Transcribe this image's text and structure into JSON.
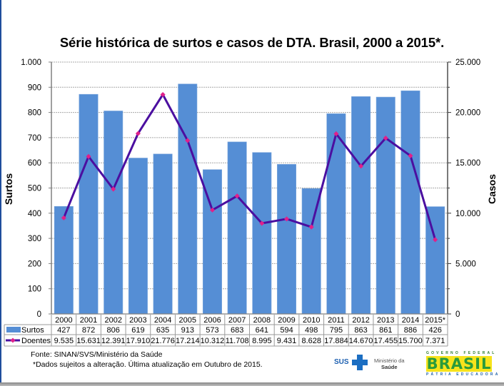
{
  "chart_data": {
    "type": "bar",
    "title": "Série histórica de surtos e casos de DTA. Brasil, 2000 a 2015*.",
    "categories": [
      "2000",
      "2001",
      "2002",
      "2003",
      "2004",
      "2005",
      "2006",
      "2007",
      "2008",
      "2009",
      "2010",
      "2011",
      "2012",
      "2013",
      "2014",
      "2015*"
    ],
    "series": [
      {
        "name": "Surtos",
        "type": "bar",
        "axis": "left",
        "color": "#558ed5",
        "values": [
          427,
          872,
          806,
          619,
          635,
          913,
          573,
          683,
          641,
          594,
          498,
          795,
          863,
          861,
          886,
          426
        ],
        "labels": [
          "427",
          "872",
          "806",
          "619",
          "635",
          "913",
          "573",
          "683",
          "641",
          "594",
          "498",
          "795",
          "863",
          "861",
          "886",
          "426"
        ]
      },
      {
        "name": "Doentes",
        "type": "line",
        "axis": "right",
        "color": "#4b0fa0",
        "marker_color": "#e0208a",
        "values": [
          9535,
          15631,
          12391,
          17910,
          21776,
          17214,
          10312,
          11708,
          8995,
          9431,
          8628,
          17884,
          14670,
          17455,
          15700,
          7371
        ],
        "labels": [
          "9.535",
          "15.631",
          "12.391",
          "17.910",
          "21.776",
          "17.214",
          "10.312",
          "11.708",
          "8.995",
          "9.431",
          "8.628",
          "17.884",
          "14.670",
          "17.455",
          "15.700",
          "7.371"
        ]
      }
    ],
    "ylabel": "Surtos",
    "ylim": [
      0,
      1000
    ],
    "yticks": [
      "0",
      "100",
      "200",
      "300",
      "400",
      "500",
      "600",
      "700",
      "800",
      "900",
      "1.000"
    ],
    "y2label": "Casos",
    "y2lim": [
      0,
      25000
    ],
    "y2ticks": [
      "0",
      "5.000",
      "10.000",
      "15.000",
      "20.000",
      "25.000"
    ],
    "grid": true,
    "legend": "data-table-below"
  },
  "footer": {
    "source": "Fonte: SINAN/SVS/Ministério da Saúde",
    "note": "*Dados sujeitos a alteração. Última atualização em  Outubro de 2015."
  },
  "logos": {
    "sus": "SUS",
    "ministerio_line1": "Ministério da",
    "ministerio_line2": "Saúde",
    "gov_top": "GOVERNO FEDERAL",
    "gov_word": "BRASIL",
    "gov_bottom": "PÁTRIA EDUCADORA"
  }
}
